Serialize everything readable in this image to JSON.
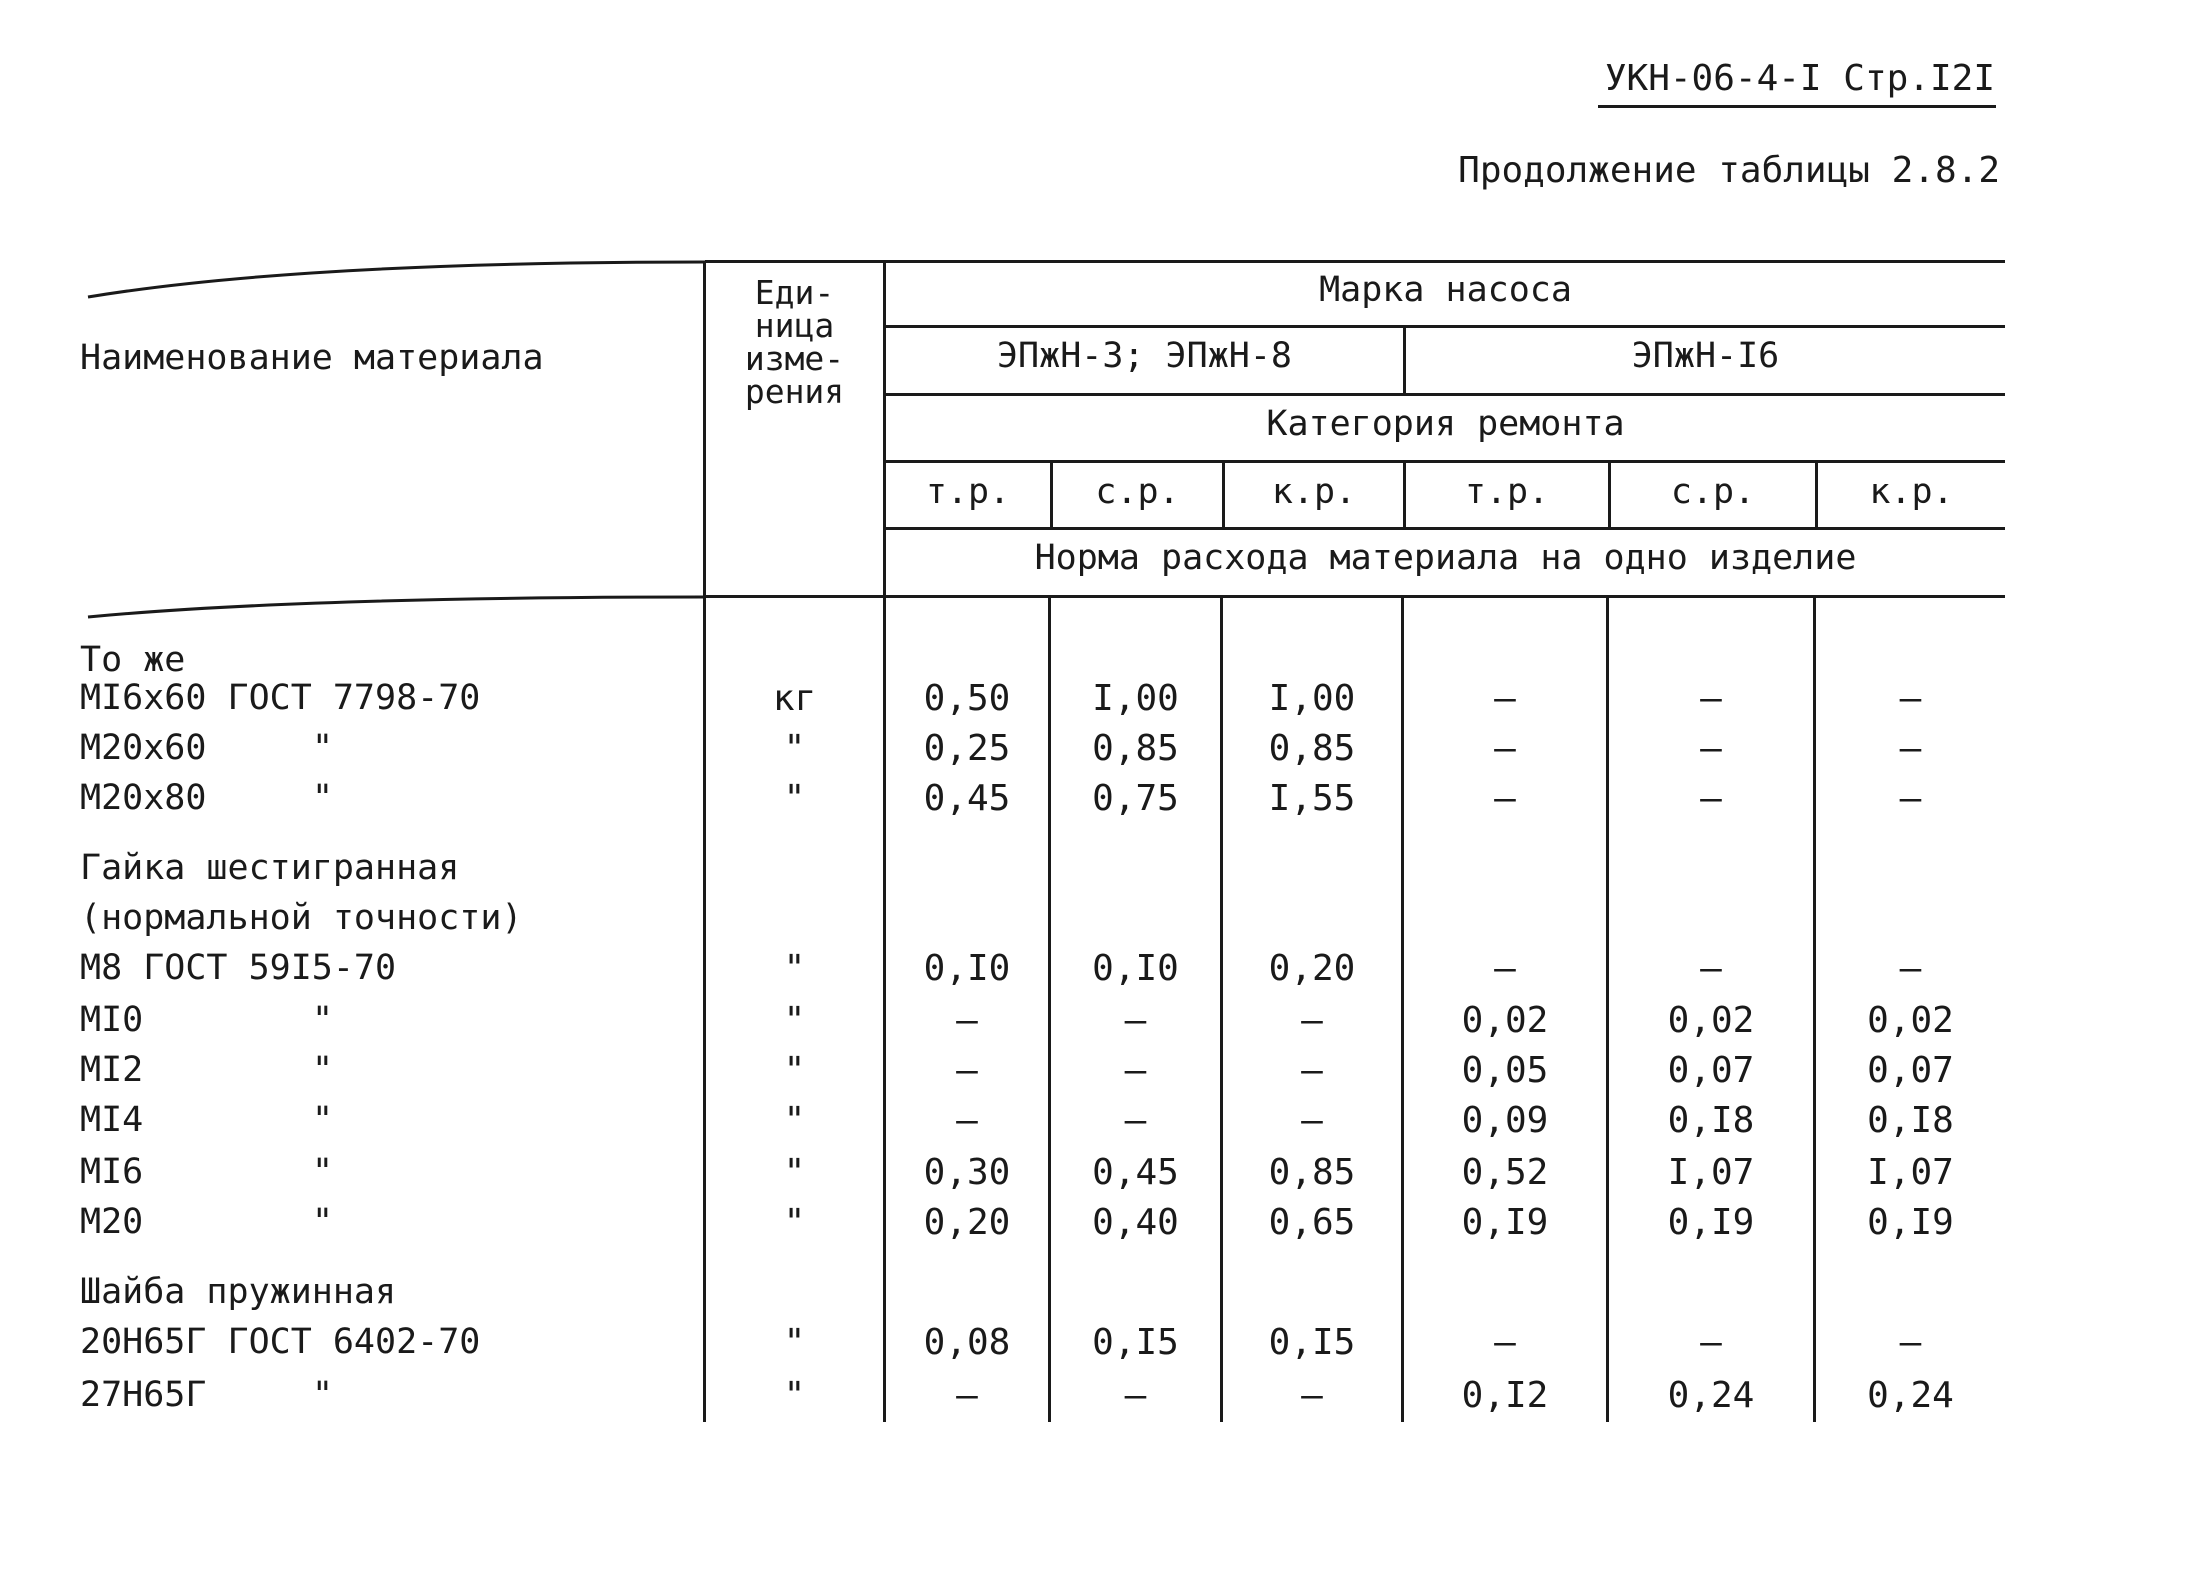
{
  "header": {
    "doc_code": "УКН-06-4-I  Стр.I2I",
    "continuation": "Продолжение таблицы 2.8.2"
  },
  "table": {
    "col_name": "Наименование материала",
    "col_unit": [
      "Еди-",
      "ница",
      "изме-",
      "рения"
    ],
    "pump_brand": "Марка насоса",
    "pump_group_1": "ЭПжН-3; ЭПжН-8",
    "pump_group_2": "ЭПжН-I6",
    "repair_category": "Категория ремонта",
    "repair_types": [
      "т.р.",
      "с.р.",
      "к.р.",
      "т.р.",
      "с.р.",
      "к.р."
    ],
    "norm_label": "Норма расхода материала на одно изделие",
    "rows": [
      {
        "name": "То же",
        "unit": "",
        "values": [
          "",
          "",
          "",
          "",
          "",
          ""
        ]
      },
      {
        "name": "MI6x60  ГОСТ 7798-70",
        "unit": "кг",
        "values": [
          "0,50",
          "I,00",
          "I,00",
          "–",
          "–",
          "–"
        ]
      },
      {
        "name": "M20x60",
        "ditto": "\"",
        "unit": "\"",
        "values": [
          "0,25",
          "0,85",
          "0,85",
          "–",
          "–",
          "–"
        ]
      },
      {
        "name": "M20x80",
        "ditto": "\"",
        "unit": "\"",
        "values": [
          "0,45",
          "0,75",
          "I,55",
          "–",
          "–",
          "–"
        ]
      },
      {
        "name": "Гайка шестигранная",
        "unit": "",
        "values": [
          "",
          "",
          "",
          "",
          "",
          ""
        ]
      },
      {
        "name": "(нормальной  точности)",
        "unit": "",
        "values": [
          "",
          "",
          "",
          "",
          "",
          ""
        ]
      },
      {
        "name": "M8  ГОСТ 59I5-70",
        "unit": "\"",
        "values": [
          "0,I0",
          "0,I0",
          "0,20",
          "–",
          "–",
          "–"
        ]
      },
      {
        "name": "MI0",
        "ditto": "\"",
        "unit": "\"",
        "values": [
          "–",
          "–",
          "–",
          "0,02",
          "0,02",
          "0,02"
        ]
      },
      {
        "name": "MI2",
        "ditto": "\"",
        "unit": "\"",
        "values": [
          "–",
          "–",
          "–",
          "0,05",
          "0,07",
          "0,07"
        ]
      },
      {
        "name": "MI4",
        "ditto": "\"",
        "unit": "\"",
        "values": [
          "–",
          "–",
          "–",
          "0,09",
          "0,I8",
          "0,I8"
        ]
      },
      {
        "name": "MI6",
        "ditto": "\"",
        "unit": "\"",
        "values": [
          "0,30",
          "0,45",
          "0,85",
          "0,52",
          "I,07",
          "I,07"
        ]
      },
      {
        "name": "M20",
        "ditto": "\"",
        "unit": "\"",
        "values": [
          "0,20",
          "0,40",
          "0,65",
          "0,I9",
          "0,I9",
          "0,I9"
        ]
      },
      {
        "name": "Шайба пружинная",
        "unit": "",
        "values": [
          "",
          "",
          "",
          "",
          "",
          ""
        ]
      },
      {
        "name": "20H65Г  ГОСТ 6402-70",
        "unit": "\"",
        "values": [
          "0,08",
          "0,I5",
          "0,I5",
          "–",
          "–",
          "–"
        ]
      },
      {
        "name": "27H65Г",
        "ditto": "\"",
        "unit": "\"",
        "values": [
          "–",
          "–",
          "–",
          "0,I2",
          "0,24",
          "0,24"
        ]
      }
    ]
  }
}
